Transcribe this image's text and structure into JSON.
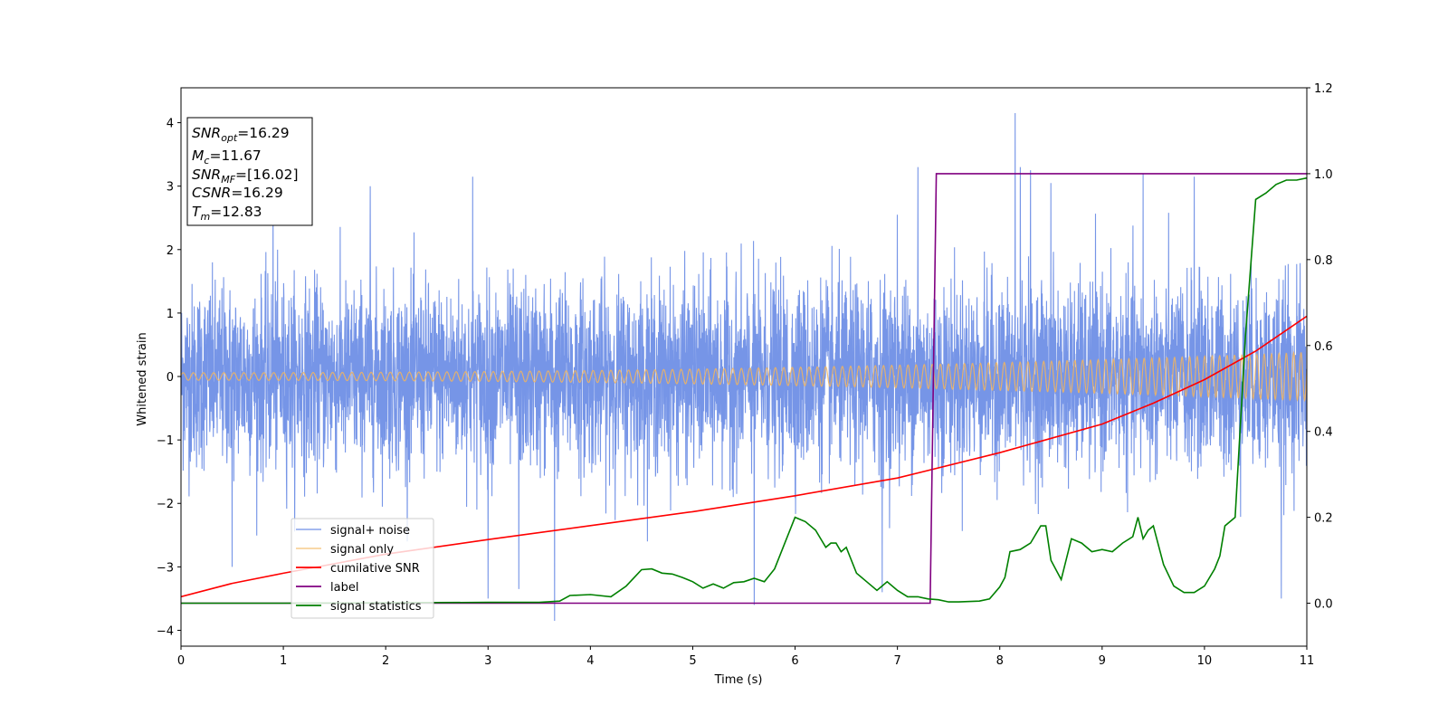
{
  "chart_data": {
    "type": "line",
    "xlabel": "Time (s)",
    "ylabel": "Whitened strain",
    "xlim": [
      0,
      11
    ],
    "ylim": [
      -4.25,
      4.55
    ],
    "y2lim": [
      -0.1,
      1.2
    ],
    "grid": false,
    "x_ticks": [
      "0",
      "1",
      "2",
      "3",
      "4",
      "5",
      "6",
      "7",
      "8",
      "9",
      "10",
      "11"
    ],
    "y_ticks": [
      "−4",
      "−3",
      "−2",
      "−1",
      "0",
      "1",
      "2",
      "3",
      "4"
    ],
    "y2_ticks": [
      "0.0",
      "0.2",
      "0.4",
      "0.6",
      "0.8",
      "1.0",
      "1.2"
    ],
    "legend_position": "lower-left",
    "info_box": {
      "position": "top-left",
      "lines": [
        {
          "symbol": "SNR",
          "subscript": "opt",
          "value": "=16.29"
        },
        {
          "symbol": "M",
          "subscript": "c",
          "value": "=11.67"
        },
        {
          "symbol": "SNR",
          "subscript": "MF",
          "value": "=[16.02]"
        },
        {
          "symbol": "CSNR",
          "subscript": "",
          "value": "=16.29"
        },
        {
          "symbol": "T",
          "subscript": "m",
          "value": "=12.83"
        }
      ]
    },
    "series": [
      {
        "name": "signal+ noise",
        "color": "#6f8fe6",
        "axis": "left",
        "description_stats": {
          "approx_range": [
            -3.85,
            4.15
          ],
          "envelope_lower": -1.7,
          "envelope_upper": 1.8
        },
        "spikes_x": [
          0.5,
          0.9,
          1.85,
          2.85,
          3.0,
          3.3,
          3.65,
          5.6,
          6.85,
          7.0,
          7.2,
          8.15,
          8.2,
          8.3,
          8.5,
          9.4,
          9.9,
          10.75
        ],
        "spikes_y": [
          -3.0,
          3.25,
          3.0,
          3.15,
          -3.5,
          -3.35,
          -3.85,
          -3.6,
          -3.4,
          2.55,
          3.3,
          4.15,
          3.3,
          3.25,
          3.05,
          3.2,
          3.15,
          -3.5
        ]
      },
      {
        "name": "signal only",
        "color": "#f5b55c",
        "axis": "left",
        "amplitude_start": 0.06,
        "amplitude_end": 0.38,
        "cycles_per_second_start": 10,
        "cycles_per_second_end": 14
      },
      {
        "name": "cumilative SNR",
        "color": "#ff0000",
        "axis": "left",
        "x": [
          0,
          0.5,
          1,
          2,
          3,
          4,
          5,
          6,
          7,
          8,
          9,
          9.5,
          10,
          10.5,
          11
        ],
        "y": [
          -3.47,
          -3.26,
          -3.1,
          -2.8,
          -2.57,
          -2.35,
          -2.13,
          -1.88,
          -1.6,
          -1.2,
          -0.75,
          -0.42,
          -0.05,
          0.4,
          0.95
        ]
      },
      {
        "name": "label",
        "color": "#800080",
        "axis": "right",
        "x": [
          0,
          7.32,
          7.38,
          11
        ],
        "y": [
          0,
          0,
          1,
          1
        ]
      },
      {
        "name": "signal statistics",
        "color": "#008000",
        "axis": "right",
        "x": [
          0,
          1,
          2,
          3,
          3.5,
          3.7,
          3.8,
          4.0,
          4.2,
          4.35,
          4.5,
          4.6,
          4.7,
          4.8,
          4.9,
          5.0,
          5.1,
          5.2,
          5.3,
          5.4,
          5.5,
          5.6,
          5.7,
          5.8,
          5.9,
          6.0,
          6.1,
          6.2,
          6.3,
          6.35,
          6.4,
          6.45,
          6.5,
          6.6,
          6.7,
          6.8,
          6.9,
          7.0,
          7.1,
          7.2,
          7.3,
          7.4,
          7.5,
          7.6,
          7.8,
          7.9,
          8.0,
          8.05,
          8.1,
          8.2,
          8.3,
          8.4,
          8.45,
          8.5,
          8.6,
          8.7,
          8.8,
          8.9,
          9.0,
          9.1,
          9.2,
          9.3,
          9.35,
          9.4,
          9.45,
          9.5,
          9.6,
          9.7,
          9.8,
          9.9,
          10.0,
          10.1,
          10.15,
          10.2,
          10.3,
          10.4,
          10.5,
          10.6,
          10.7,
          10.8,
          10.9,
          11.0
        ],
        "y": [
          0.0,
          0.0,
          0.001,
          0.002,
          0.002,
          0.005,
          0.018,
          0.02,
          0.015,
          0.04,
          0.078,
          0.08,
          0.07,
          0.068,
          0.06,
          0.05,
          0.035,
          0.045,
          0.035,
          0.048,
          0.05,
          0.058,
          0.05,
          0.08,
          0.14,
          0.2,
          0.19,
          0.17,
          0.13,
          0.14,
          0.14,
          0.12,
          0.13,
          0.07,
          0.05,
          0.03,
          0.05,
          0.03,
          0.015,
          0.015,
          0.01,
          0.008,
          0.003,
          0.003,
          0.005,
          0.01,
          0.038,
          0.06,
          0.12,
          0.125,
          0.14,
          0.18,
          0.18,
          0.1,
          0.055,
          0.15,
          0.14,
          0.12,
          0.125,
          0.12,
          0.14,
          0.155,
          0.2,
          0.15,
          0.17,
          0.18,
          0.09,
          0.04,
          0.025,
          0.025,
          0.04,
          0.08,
          0.11,
          0.18,
          0.2,
          0.62,
          0.94,
          0.955,
          0.975,
          0.985,
          0.985,
          0.99
        ]
      }
    ]
  }
}
